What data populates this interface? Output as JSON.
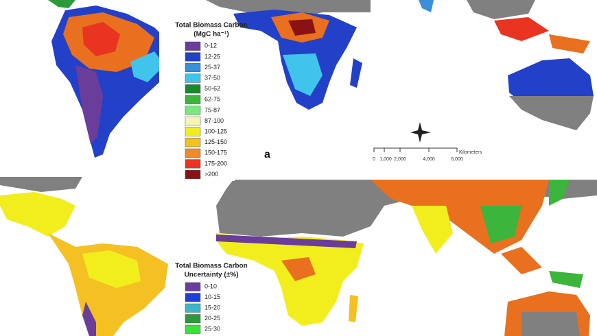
{
  "panel_a": {
    "label": "a",
    "legend": {
      "title": "Total Biomass Carbon",
      "unit": "(MgC ha⁻¹)",
      "items": [
        {
          "label": "0-12",
          "color": "#6a3d9a"
        },
        {
          "label": "12-25",
          "color": "#2340c8"
        },
        {
          "label": "25-37",
          "color": "#3a8fd8"
        },
        {
          "label": "37-50",
          "color": "#40c4ec"
        },
        {
          "label": "50-62",
          "color": "#178a2a"
        },
        {
          "label": "62-75",
          "color": "#3cb53c"
        },
        {
          "label": "75-87",
          "color": "#7ae87e"
        },
        {
          "label": "87-100",
          "color": "#f6f4b4"
        },
        {
          "label": "100-125",
          "color": "#f2ee1e"
        },
        {
          "label": "125-150",
          "color": "#f4c022"
        },
        {
          "label": "150-175",
          "color": "#f08a2a"
        },
        {
          "label": "175-200",
          "color": "#e83420"
        },
        {
          "label": ">200",
          "color": "#8b1212"
        }
      ]
    },
    "scale_bar": {
      "unit": "Kilometers",
      "ticks": [
        "0",
        "1,000",
        "2,000",
        "4,000",
        "6,000"
      ]
    }
  },
  "panel_b": {
    "legend": {
      "title": "Total Biomass Carbon",
      "unit": "Uncertainty (±%)",
      "items": [
        {
          "label": "0-10",
          "color": "#6a3d9a"
        },
        {
          "label": "10-15",
          "color": "#1f3fd8"
        },
        {
          "label": "15-20",
          "color": "#3ab8c8"
        },
        {
          "label": "20-25",
          "color": "#2a9a3a"
        },
        {
          "label": "25-30",
          "color": "#3ce03c"
        }
      ]
    }
  }
}
